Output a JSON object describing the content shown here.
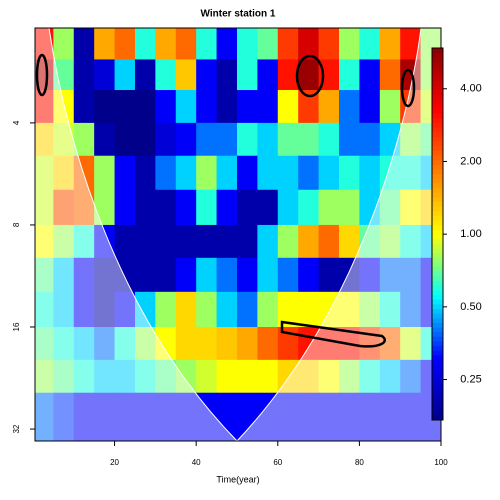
{
  "chart_data": {
    "type": "heatmap",
    "title": "Winter station 1",
    "xlabel": "Time(year)",
    "x_bins": [
      0.5,
      5,
      10,
      15,
      20,
      25,
      30,
      35,
      40,
      45,
      50,
      55,
      60,
      65,
      70,
      75,
      80,
      85,
      90,
      95,
      100
    ],
    "y_bins": [
      2.1,
      2.6,
      3.2,
      4,
      5,
      6.3,
      8,
      10,
      12.6,
      16,
      20,
      25,
      34.7
    ],
    "xlim": [
      0.5,
      100
    ],
    "ylim": [
      2.1,
      34.7
    ],
    "y_log": true,
    "y_inverted": true,
    "xticks": [
      20,
      40,
      60,
      80,
      100
    ],
    "yticks": [
      4,
      8,
      16,
      32
    ],
    "values": [
      [
        3,
        0.8,
        0.2,
        1.5,
        2,
        0.6,
        1.5,
        2,
        0.6,
        0.3,
        0.6,
        0.7,
        2.5,
        4,
        2.5,
        0.8,
        0.6,
        1.5,
        3,
        0.8
      ],
      [
        4.5,
        0.7,
        0.2,
        0.25,
        0.5,
        0.2,
        0.6,
        1.3,
        0.3,
        0.2,
        0.6,
        0.3,
        3,
        5.5,
        3,
        0.6,
        0.3,
        2,
        5,
        0.8
      ],
      [
        3,
        1,
        0.2,
        0.15,
        0.15,
        0.15,
        0.3,
        0.5,
        0.3,
        0.2,
        0.3,
        0.3,
        1,
        2.5,
        1.5,
        0.4,
        0.3,
        0.8,
        2.5,
        0.9
      ],
      [
        1.2,
        0.9,
        0.8,
        0.2,
        0.15,
        0.15,
        0.25,
        0.3,
        0.4,
        0.4,
        0.6,
        0.5,
        0.7,
        0.7,
        0.6,
        0.4,
        0.4,
        0.5,
        0.8,
        0.7
      ],
      [
        0.9,
        1.2,
        2,
        0.8,
        0.3,
        0.2,
        0.4,
        0.5,
        0.8,
        0.5,
        0.3,
        0.5,
        0.5,
        0.4,
        0.5,
        0.6,
        0.5,
        0.6,
        0.6,
        0.5
      ],
      [
        0.9,
        2.2,
        2,
        0.8,
        0.3,
        0.2,
        0.2,
        0.3,
        0.6,
        0.3,
        0.2,
        0.2,
        0.5,
        0.6,
        0.8,
        0.8,
        0.5,
        0.7,
        1,
        1.2
      ],
      [
        1,
        0.8,
        0.6,
        0.3,
        0.2,
        0.2,
        0.2,
        0.2,
        0.2,
        0.2,
        0.2,
        0.5,
        0.8,
        1.5,
        2,
        1.2,
        0.7,
        0.8,
        0.6,
        0.5
      ],
      [
        0.7,
        0.5,
        0.3,
        0.2,
        0.2,
        0.2,
        0.2,
        0.3,
        0.5,
        0.4,
        0.3,
        0.5,
        0.4,
        0.3,
        0.2,
        0.2,
        0.3,
        0.4,
        0.4,
        0.3
      ],
      [
        0.6,
        0.5,
        0.3,
        0.2,
        0.3,
        0.5,
        0.8,
        1.2,
        0.8,
        0.5,
        0.4,
        0.8,
        1,
        1,
        1,
        1,
        0.8,
        0.6,
        0.4,
        0.3
      ],
      [
        0.7,
        0.6,
        0.5,
        0.4,
        0.6,
        0.8,
        1,
        1.2,
        1.2,
        1.3,
        1.5,
        2,
        2.5,
        3,
        3,
        3,
        2.5,
        2,
        0.9,
        0.6
      ],
      [
        0.8,
        0.7,
        0.6,
        0.5,
        0.5,
        0.6,
        0.7,
        0.8,
        0.9,
        1,
        1,
        1,
        1.2,
        1.2,
        1,
        0.8,
        0.6,
        0.5,
        0.4,
        0.3
      ],
      [
        0.4,
        0.35,
        0.3,
        0.3,
        0.3,
        0.3,
        0.3,
        0.3,
        0.3,
        0.3,
        0.3,
        0.3,
        0.3,
        0.3,
        0.3,
        0.3,
        0.3,
        0.3,
        0.3,
        0.3
      ]
    ],
    "colorbar": {
      "lim": [
        0.17,
        5.9
      ],
      "log": true,
      "colors": [
        "#00008b",
        "#0000ff",
        "#00ffff",
        "#ffff00",
        "#ff8000",
        "#ff0000",
        "#8b0000"
      ],
      "ticks": [
        {
          "value": 0.25,
          "label": "0.25"
        },
        {
          "value": 0.5,
          "label": "0.50"
        },
        {
          "value": 1,
          "label": "1.00"
        },
        {
          "value": 2,
          "label": "2.00"
        },
        {
          "value": 4,
          "label": "4.00"
        }
      ]
    }
  }
}
